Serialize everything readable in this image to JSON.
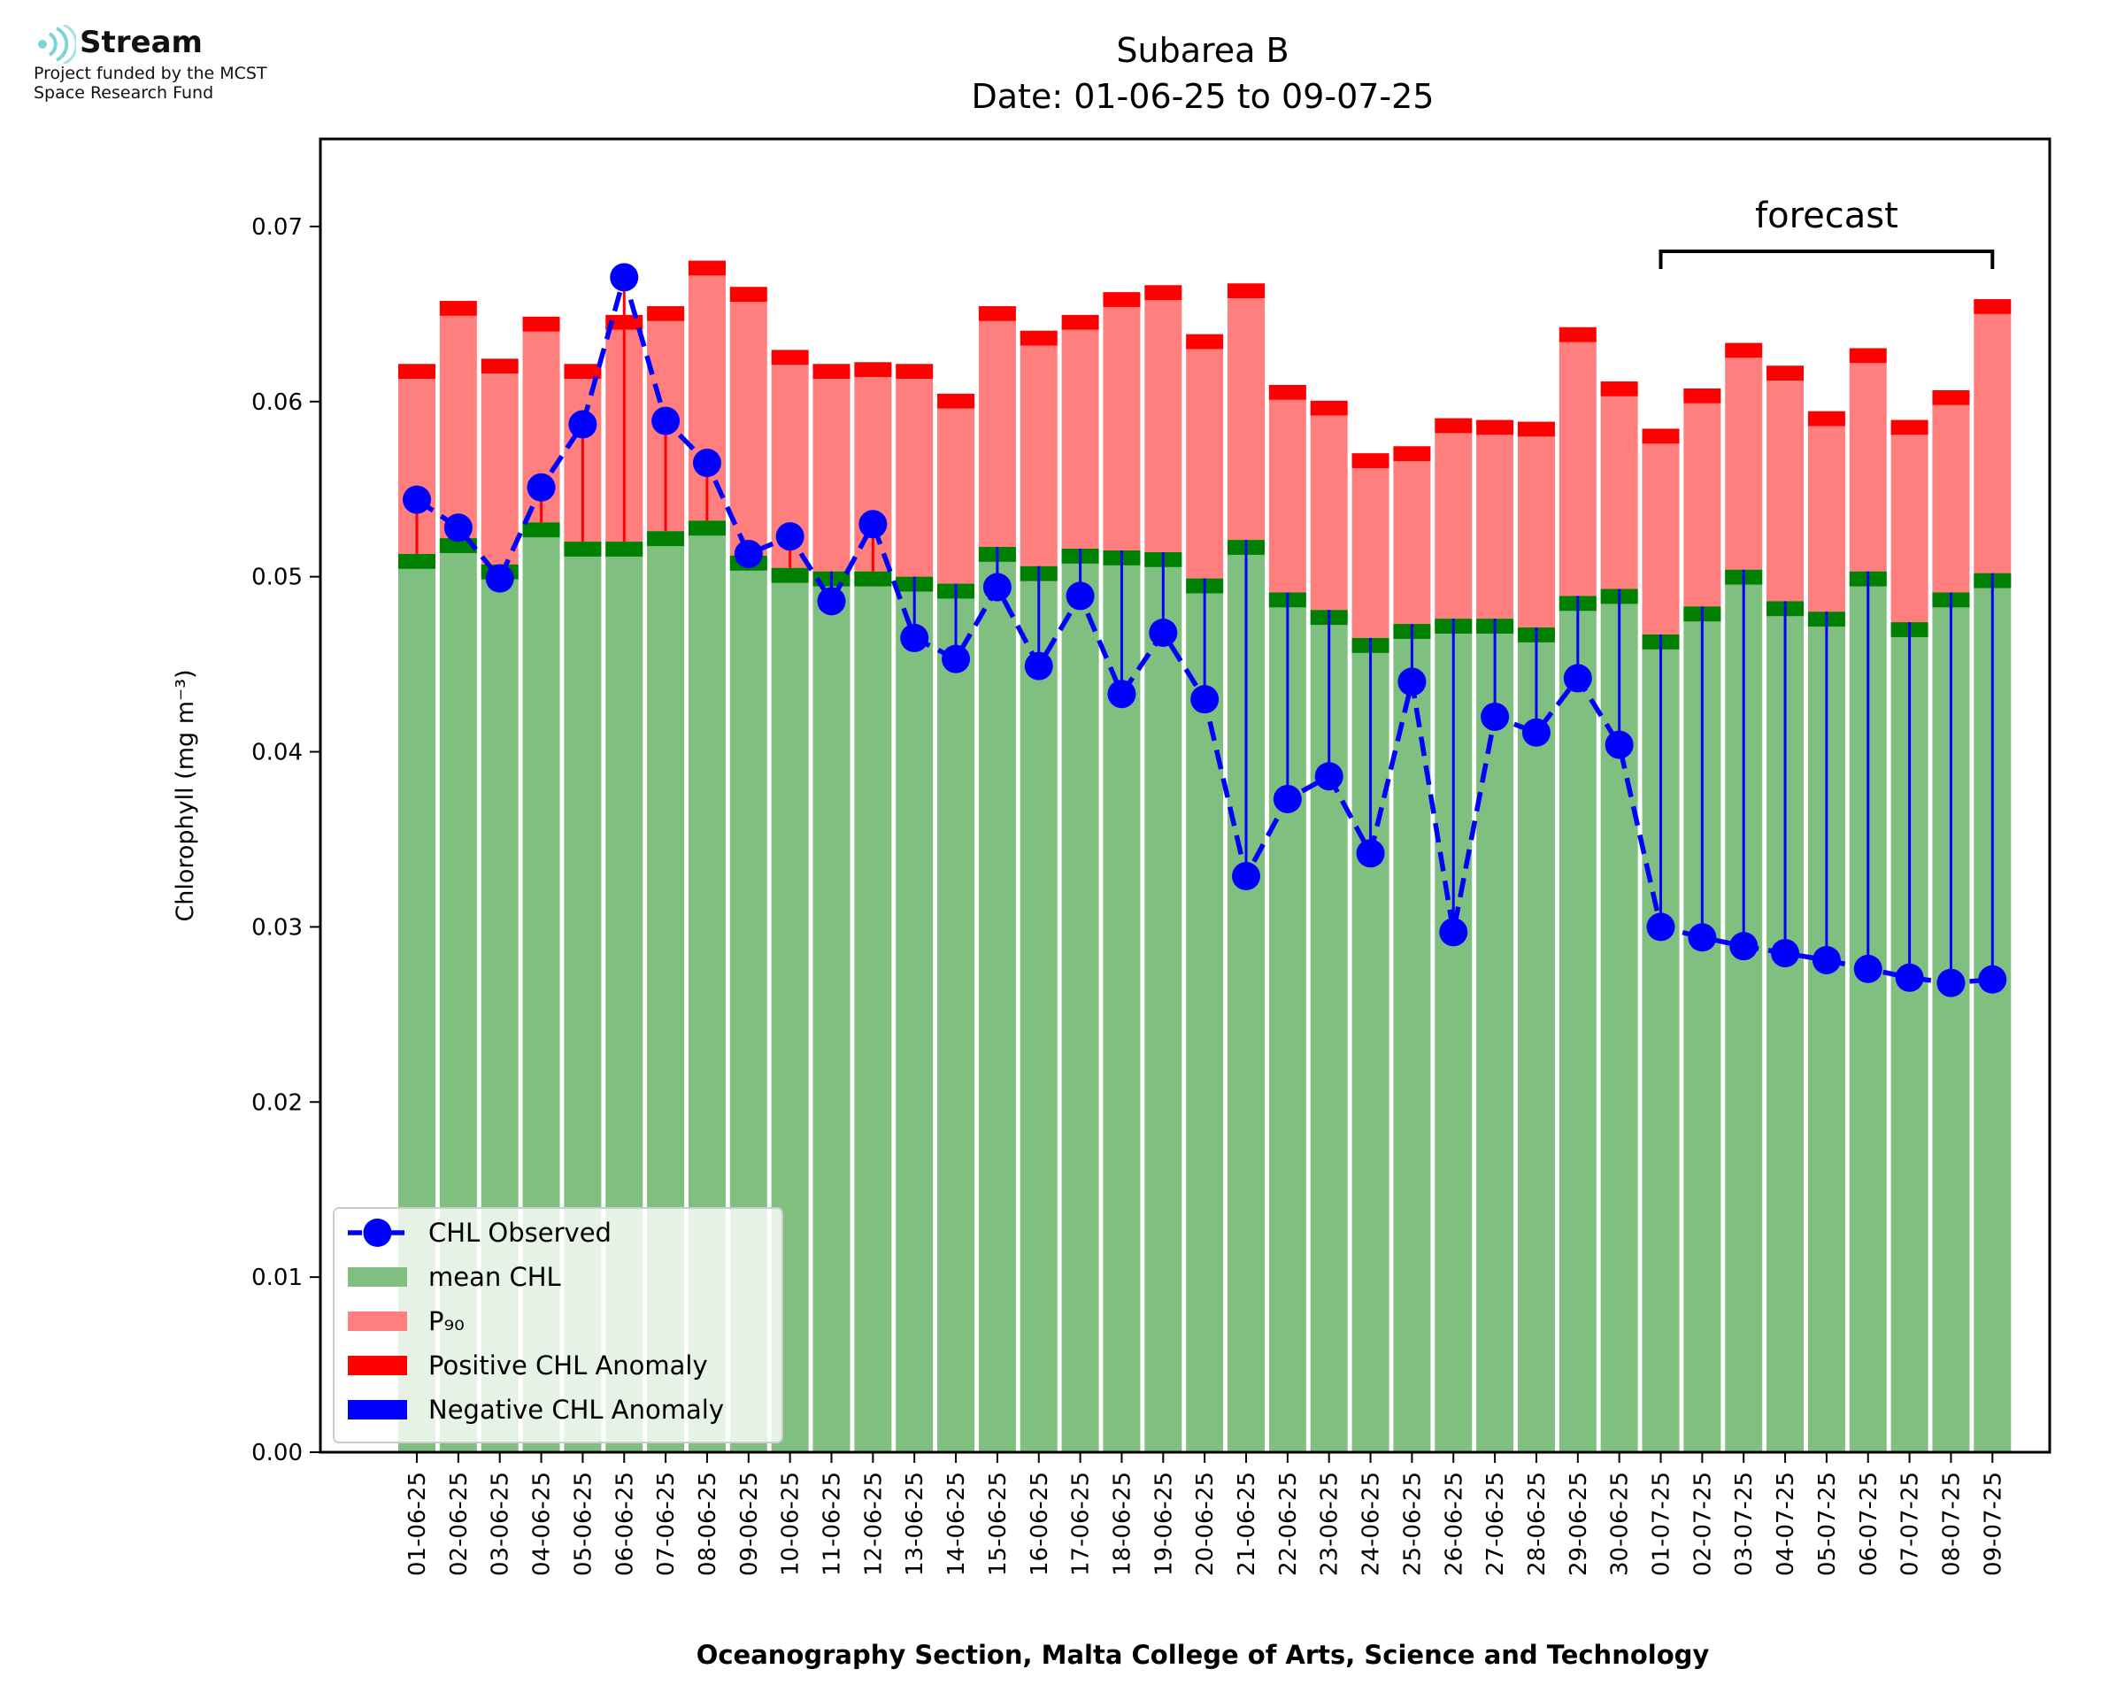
{
  "logo": {
    "name": "Stream",
    "line1": "Project funded by the MCST",
    "line2": "Space Research Fund",
    "color": "#7fd3d6"
  },
  "chart_data": {
    "type": "bar",
    "title": "Subarea B",
    "subtitle": "Date: 01-06-25 to 09-07-25",
    "xlabel": "Oceanography Section, Malta College of Arts, Science and Technology",
    "ylabel": "Chlorophyll (mg m⁻³)",
    "ylim": [
      0,
      0.075
    ],
    "yticks": [
      "0.00",
      "0.01",
      "0.02",
      "0.03",
      "0.04",
      "0.05",
      "0.06",
      "0.07"
    ],
    "grid": false,
    "legend_position": "lower-left",
    "annotation": "forecast",
    "forecast_start": "01-07-25",
    "forecast_end": "09-07-25",
    "categories": [
      "01-06-25",
      "02-06-25",
      "03-06-25",
      "04-06-25",
      "05-06-25",
      "06-06-25",
      "07-06-25",
      "08-06-25",
      "09-06-25",
      "10-06-25",
      "11-06-25",
      "12-06-25",
      "13-06-25",
      "14-06-25",
      "15-06-25",
      "16-06-25",
      "17-06-25",
      "18-06-25",
      "19-06-25",
      "20-06-25",
      "21-06-25",
      "22-06-25",
      "23-06-25",
      "24-06-25",
      "25-06-25",
      "26-06-25",
      "27-06-25",
      "28-06-25",
      "29-06-25",
      "30-06-25",
      "01-07-25",
      "02-07-25",
      "03-07-25",
      "04-07-25",
      "05-07-25",
      "06-07-25",
      "07-07-25",
      "08-07-25",
      "09-07-25"
    ],
    "series": [
      {
        "name": "CHL Observed",
        "color": "#0000ff",
        "values": [
          0.0544,
          0.0528,
          0.0499,
          0.0551,
          0.0587,
          0.0671,
          0.0589,
          0.0565,
          0.0513,
          0.0523,
          0.0486,
          0.053,
          0.0465,
          0.0453,
          0.0494,
          0.0449,
          0.0489,
          0.0433,
          0.0468,
          0.043,
          0.0329,
          0.0373,
          0.0386,
          0.0342,
          0.044,
          0.0297,
          0.042,
          0.0411,
          0.0442,
          0.0404,
          0.03,
          0.0294,
          0.0289,
          0.0285,
          0.0281,
          0.0276,
          0.0271,
          0.0268,
          0.027
        ]
      },
      {
        "name": "mean CHL",
        "color": "#7fbf7f",
        "values": [
          0.0513,
          0.0522,
          0.0507,
          0.0531,
          0.052,
          0.052,
          0.0526,
          0.0532,
          0.0512,
          0.0505,
          0.0503,
          0.0503,
          0.05,
          0.0496,
          0.0517,
          0.0506,
          0.0516,
          0.0515,
          0.0514,
          0.0499,
          0.0521,
          0.0491,
          0.0481,
          0.0465,
          0.0473,
          0.0476,
          0.0476,
          0.0471,
          0.0489,
          0.0493,
          0.0467,
          0.0483,
          0.0504,
          0.0486,
          0.048,
          0.0503,
          0.0474,
          0.0491,
          0.0502
        ]
      },
      {
        "name": "P₉₀",
        "color": "#ff7f7f",
        "values": [
          0.0613,
          0.0649,
          0.0616,
          0.064,
          0.0613,
          0.0641,
          0.0646,
          0.0672,
          0.0657,
          0.0621,
          0.0613,
          0.0614,
          0.0613,
          0.0596,
          0.0646,
          0.0632,
          0.0641,
          0.0654,
          0.0658,
          0.063,
          0.0659,
          0.0601,
          0.0592,
          0.0562,
          0.0566,
          0.0582,
          0.0581,
          0.058,
          0.0634,
          0.0603,
          0.0576,
          0.0599,
          0.0625,
          0.0612,
          0.0586,
          0.0622,
          0.0581,
          0.0598,
          0.065
        ]
      },
      {
        "name": "Positive CHL Anomaly",
        "color": "#ff0000"
      },
      {
        "name": "Negative CHL Anomaly",
        "color": "#0000ff"
      }
    ],
    "legend": [
      "CHL Observed",
      "mean CHL",
      "P₉₀",
      "Positive CHL Anomaly",
      "Negative CHL Anomaly"
    ]
  }
}
